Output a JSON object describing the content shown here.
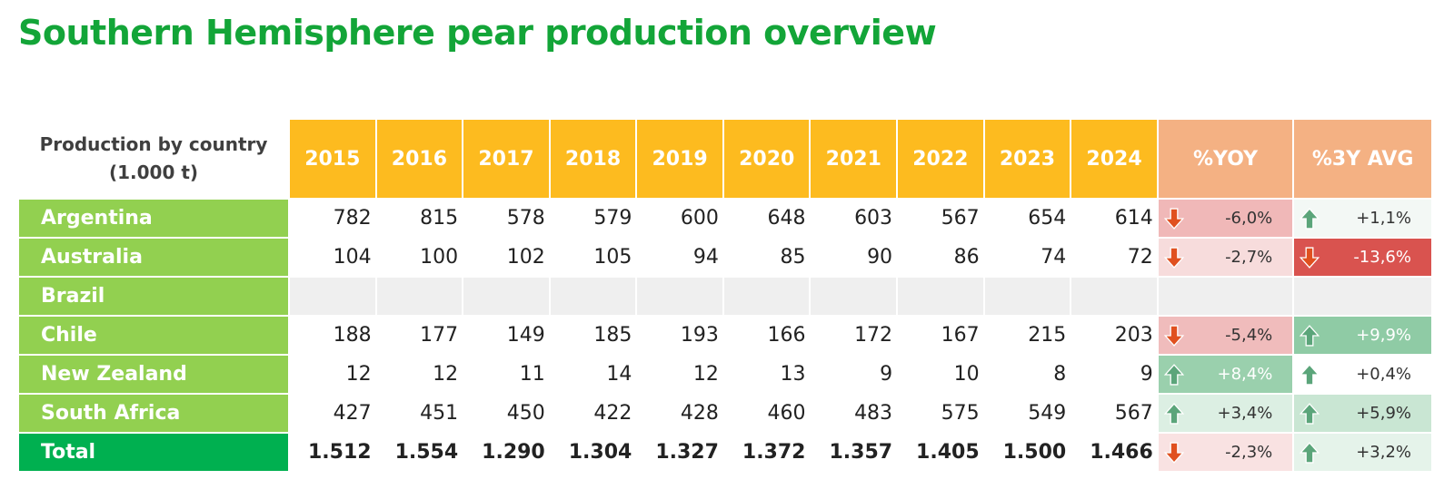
{
  "title": "Southern Hemisphere pear production overview",
  "header": {
    "label_line1": "Production by country",
    "label_line2": "(1.000 t)",
    "years": [
      "2015",
      "2016",
      "2017",
      "2018",
      "2019",
      "2020",
      "2021",
      "2022",
      "2023",
      "2024"
    ],
    "yoy": "%YOY",
    "avg3y": "%3Y AVG"
  },
  "colors": {
    "title": "#13a538",
    "year_header": "#fdbb1f",
    "pct_header": "#f4b183",
    "country_cell": "#92d050",
    "total_cell": "#00b050"
  },
  "rows": [
    {
      "country": "Argentina",
      "values": [
        "782",
        "815",
        "578",
        "579",
        "600",
        "648",
        "603",
        "567",
        "654",
        "614"
      ],
      "yoy": {
        "text": "-6,0%",
        "dir": "down",
        "bg": "#f0b8b8",
        "fg": "#333333"
      },
      "avg3y": {
        "text": "+1,1%",
        "dir": "up",
        "bg": "#f3f8f5",
        "fg": "#333333"
      }
    },
    {
      "country": "Australia",
      "values": [
        "104",
        "100",
        "102",
        "105",
        "94",
        "85",
        "90",
        "86",
        "74",
        "72"
      ],
      "yoy": {
        "text": "-2,7%",
        "dir": "down",
        "bg": "#f7dcdc",
        "fg": "#333333"
      },
      "avg3y": {
        "text": "-13,6%",
        "dir": "down",
        "bg": "#d9534f",
        "fg": "#ffffff"
      }
    },
    {
      "country": "Brazil",
      "values": [],
      "yoy": null,
      "avg3y": null
    },
    {
      "country": "Chile",
      "values": [
        "188",
        "177",
        "149",
        "185",
        "193",
        "166",
        "172",
        "167",
        "215",
        "203"
      ],
      "yoy": {
        "text": "-5,4%",
        "dir": "down",
        "bg": "#f0bcbc",
        "fg": "#333333"
      },
      "avg3y": {
        "text": "+9,9%",
        "dir": "up",
        "bg": "#8fcba5",
        "fg": "#ffffff"
      }
    },
    {
      "country": "New Zealand",
      "values": [
        "12",
        "12",
        "11",
        "14",
        "12",
        "13",
        "9",
        "10",
        "8",
        "9"
      ],
      "yoy": {
        "text": "+8,4%",
        "dir": "up",
        "bg": "#9ad0ad",
        "fg": "#ffffff"
      },
      "avg3y": {
        "text": "+0,4%",
        "dir": "up",
        "bg": "#ffffff",
        "fg": "#333333"
      }
    },
    {
      "country": "South Africa",
      "values": [
        "427",
        "451",
        "450",
        "422",
        "428",
        "460",
        "483",
        "575",
        "549",
        "567"
      ],
      "yoy": {
        "text": "+3,4%",
        "dir": "up",
        "bg": "#dcefe3",
        "fg": "#333333"
      },
      "avg3y": {
        "text": "+5,9%",
        "dir": "up",
        "bg": "#c9e6d3",
        "fg": "#333333"
      }
    },
    {
      "country": "Total",
      "total": true,
      "values": [
        "1.512",
        "1.554",
        "1.290",
        "1.304",
        "1.327",
        "1.372",
        "1.357",
        "1.405",
        "1.500",
        "1.466"
      ],
      "yoy": {
        "text": "-2,3%",
        "dir": "down",
        "bg": "#f9e2e2",
        "fg": "#333333"
      },
      "avg3y": {
        "text": "+3,2%",
        "dir": "up",
        "bg": "#e5f3ea",
        "fg": "#333333"
      }
    }
  ]
}
